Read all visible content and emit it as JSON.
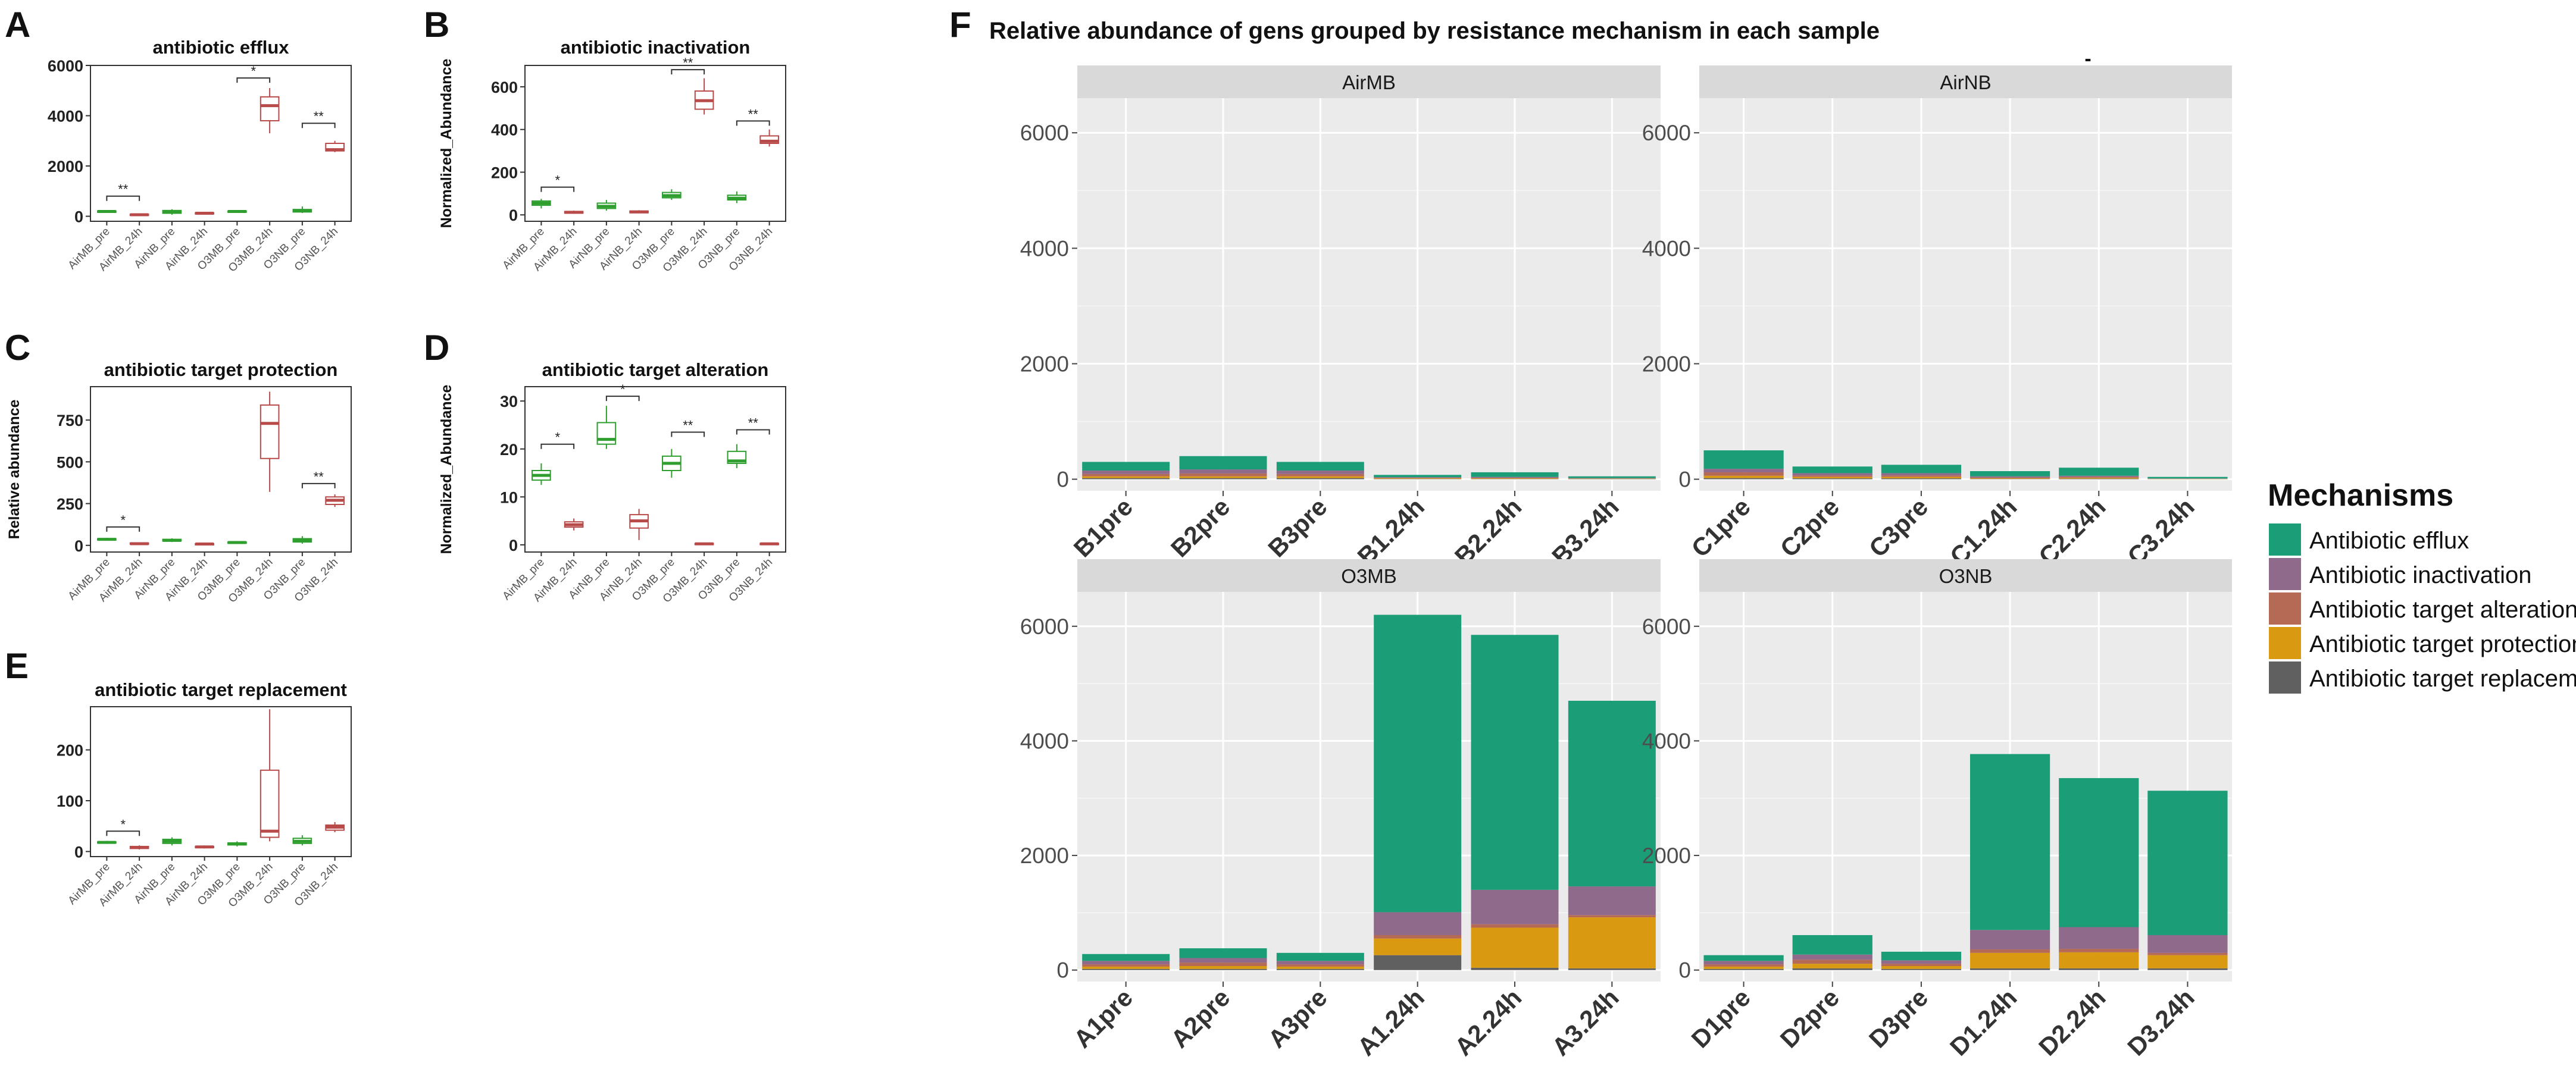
{
  "figure": {
    "title": "Relative abundance  of gens grouped by resistance mechanism in each sample",
    "title_dash": "-",
    "legend": {
      "title": "Mechanisms",
      "items": [
        {
          "label": "Antibiotic efflux",
          "color": "#1b9e77"
        },
        {
          "label": "Antibiotic inactivation",
          "color": "#8f6a8b"
        },
        {
          "label": "Antibiotic target alteration",
          "color": "#b56a55"
        },
        {
          "label": "Antibiotic target protection",
          "color": "#d99a12"
        },
        {
          "label": "Antibiotic target replacement",
          "color": "#606060"
        }
      ]
    }
  },
  "chart_data": [
    {
      "type": "box",
      "panel": "A",
      "title": "antibiotic efflux",
      "ylabel": "",
      "categories": [
        "AirMB_pre",
        "AirMB_24h",
        "AirNB_pre",
        "AirNB_24h",
        "O3MB_pre",
        "O3MB_24h",
        "O3NB_pre",
        "O3NB_24h"
      ],
      "yticks": [
        0,
        2000,
        4000,
        6000
      ],
      "ylim": [
        -200,
        6000
      ],
      "boxes": [
        {
          "min": 140,
          "q1": 160,
          "median": 190,
          "q3": 210,
          "max": 240
        },
        {
          "min": 20,
          "q1": 40,
          "median": 60,
          "q3": 80,
          "max": 110
        },
        {
          "min": 60,
          "q1": 120,
          "median": 180,
          "q3": 230,
          "max": 280
        },
        {
          "min": 80,
          "q1": 100,
          "median": 120,
          "q3": 140,
          "max": 170
        },
        {
          "min": 140,
          "q1": 170,
          "median": 190,
          "q3": 210,
          "max": 240
        },
        {
          "min": 3300,
          "q1": 3800,
          "median": 4400,
          "q3": 4750,
          "max": 5100
        },
        {
          "min": 130,
          "q1": 170,
          "median": 220,
          "q3": 270,
          "max": 390
        },
        {
          "min": 2550,
          "q1": 2600,
          "median": 2650,
          "q3": 2900,
          "max": 3000
        }
      ],
      "significance": [
        {
          "from": 0,
          "to": 1,
          "y": 800,
          "label": "**"
        },
        {
          "from": 4,
          "to": 5,
          "y": 5500,
          "label": "*"
        },
        {
          "from": 6,
          "to": 7,
          "y": 3700,
          "label": "**"
        }
      ]
    },
    {
      "type": "box",
      "panel": "B",
      "title": "antibiotic inactivation",
      "ylabel": "Normalized_Abundance",
      "categories": [
        "AirMB_pre",
        "AirMB_24h",
        "AirNB_pre",
        "AirNB_24h",
        "O3MB_pre",
        "O3MB_24h",
        "O3NB_pre",
        "O3NB_24h"
      ],
      "yticks": [
        0,
        200,
        400,
        600
      ],
      "ylim": [
        -30,
        700
      ],
      "boxes": [
        {
          "min": 30,
          "q1": 45,
          "median": 55,
          "q3": 65,
          "max": 75
        },
        {
          "min": 5,
          "q1": 8,
          "median": 12,
          "q3": 16,
          "max": 20
        },
        {
          "min": 20,
          "q1": 30,
          "median": 40,
          "q3": 55,
          "max": 70
        },
        {
          "min": 8,
          "q1": 10,
          "median": 14,
          "q3": 18,
          "max": 22
        },
        {
          "min": 70,
          "q1": 80,
          "median": 90,
          "q3": 105,
          "max": 120
        },
        {
          "min": 470,
          "q1": 495,
          "median": 535,
          "q3": 580,
          "max": 640
        },
        {
          "min": 55,
          "q1": 70,
          "median": 78,
          "q3": 92,
          "max": 110
        },
        {
          "min": 320,
          "q1": 335,
          "median": 345,
          "q3": 370,
          "max": 400
        }
      ],
      "significance": [
        {
          "from": 0,
          "to": 1,
          "y": 130,
          "label": "*"
        },
        {
          "from": 4,
          "to": 5,
          "y": 680,
          "label": "**"
        },
        {
          "from": 6,
          "to": 7,
          "y": 440,
          "label": "**"
        }
      ]
    },
    {
      "type": "box",
      "panel": "C",
      "title": "antibiotic target protection",
      "ylabel": "Relative abundance",
      "categories": [
        "AirMB_pre",
        "AirMB_24h",
        "AirNB_pre",
        "AirNB_24h",
        "O3MB_pre",
        "O3MB_24h",
        "O3NB_pre",
        "O3NB_24h"
      ],
      "yticks": [
        0,
        250,
        500,
        750
      ],
      "ylim": [
        -40,
        950
      ],
      "boxes": [
        {
          "min": 28,
          "q1": 32,
          "median": 36,
          "q3": 40,
          "max": 45
        },
        {
          "min": 5,
          "q1": 8,
          "median": 10,
          "q3": 14,
          "max": 18
        },
        {
          "min": 20,
          "q1": 26,
          "median": 30,
          "q3": 36,
          "max": 42
        },
        {
          "min": 4,
          "q1": 6,
          "median": 8,
          "q3": 10,
          "max": 14
        },
        {
          "min": 10,
          "q1": 14,
          "median": 17,
          "q3": 20,
          "max": 24
        },
        {
          "min": 320,
          "q1": 520,
          "median": 730,
          "q3": 840,
          "max": 920
        },
        {
          "min": 10,
          "q1": 20,
          "median": 30,
          "q3": 40,
          "max": 55
        },
        {
          "min": 230,
          "q1": 245,
          "median": 270,
          "q3": 290,
          "max": 305
        }
      ],
      "significance": [
        {
          "from": 0,
          "to": 1,
          "y": 110,
          "label": "*"
        },
        {
          "from": 6,
          "to": 7,
          "y": 370,
          "label": "**"
        }
      ]
    },
    {
      "type": "box",
      "panel": "D",
      "title": "antibiotic target alteration",
      "ylabel": "Normalized_Abundance",
      "categories": [
        "AirMB_pre",
        "AirMB_24h",
        "AirNB_pre",
        "AirNB_24h",
        "O3MB_pre",
        "O3MB_24h",
        "O3NB_pre",
        "O3NB_24h"
      ],
      "yticks": [
        0,
        10,
        20,
        30
      ],
      "ylim": [
        -1.5,
        33
      ],
      "boxes": [
        {
          "min": 12.5,
          "q1": 13.5,
          "median": 14.5,
          "q3": 15.5,
          "max": 17
        },
        {
          "min": 3,
          "q1": 3.7,
          "median": 4.2,
          "q3": 4.8,
          "max": 5.5
        },
        {
          "min": 20,
          "q1": 21,
          "median": 22,
          "q3": 25.5,
          "max": 29
        },
        {
          "min": 1,
          "q1": 3.5,
          "median": 5,
          "q3": 6.3,
          "max": 7.5
        },
        {
          "min": 14,
          "q1": 15.5,
          "median": 17,
          "q3": 18.5,
          "max": 20
        },
        {
          "min": 0,
          "q1": 0.1,
          "median": 0.2,
          "q3": 0.3,
          "max": 0.4
        },
        {
          "min": 16,
          "q1": 17,
          "median": 17.5,
          "q3": 19.5,
          "max": 21
        },
        {
          "min": 0,
          "q1": 0.1,
          "median": 0.2,
          "q3": 0.3,
          "max": 0.4
        }
      ],
      "significance": [
        {
          "from": 0,
          "to": 1,
          "y": 21,
          "label": "*"
        },
        {
          "from": 2,
          "to": 3,
          "y": 31,
          "label": "*"
        },
        {
          "from": 4,
          "to": 5,
          "y": 23.5,
          "label": "**"
        },
        {
          "from": 6,
          "to": 7,
          "y": 24,
          "label": "**"
        }
      ]
    },
    {
      "type": "box",
      "panel": "E",
      "title": "antibiotic target replacement",
      "ylabel": "",
      "categories": [
        "AirMB_pre",
        "AirMB_24h",
        "AirNB_pre",
        "AirNB_24h",
        "O3MB_pre",
        "O3MB_24h",
        "O3NB_pre",
        "O3NB_24h"
      ],
      "yticks": [
        0,
        100,
        200
      ],
      "ylim": [
        -10,
        285
      ],
      "boxes": [
        {
          "min": 15,
          "q1": 17,
          "median": 18,
          "q3": 19,
          "max": 21
        },
        {
          "min": 4,
          "q1": 6,
          "median": 8,
          "q3": 10,
          "max": 12
        },
        {
          "min": 12,
          "q1": 16,
          "median": 20,
          "q3": 24,
          "max": 28
        },
        {
          "min": 6,
          "q1": 8,
          "median": 9,
          "q3": 10,
          "max": 12
        },
        {
          "min": 10,
          "q1": 13,
          "median": 15,
          "q3": 17,
          "max": 20
        },
        {
          "min": 20,
          "q1": 28,
          "median": 40,
          "q3": 160,
          "max": 280
        },
        {
          "min": 12,
          "q1": 16,
          "median": 20,
          "q3": 26,
          "max": 32
        },
        {
          "min": 38,
          "q1": 42,
          "median": 48,
          "q3": 52,
          "max": 58
        }
      ],
      "significance": [
        {
          "from": 0,
          "to": 1,
          "y": 40,
          "label": "*"
        }
      ]
    },
    {
      "type": "stacked-bar",
      "panel": "F",
      "facet": "AirMB",
      "categories": [
        "B1pre",
        "B2pre",
        "B3pre",
        "B1.24h",
        "B2.24h",
        "B3.24h"
      ],
      "yticks": [
        0,
        2000,
        4000,
        6000
      ],
      "ylim": [
        -200,
        6600
      ],
      "series": [
        {
          "name": "Antibiotic target replacement",
          "values": [
            20,
            20,
            20,
            5,
            5,
            5
          ]
        },
        {
          "name": "Antibiotic target protection",
          "values": [
            30,
            30,
            30,
            10,
            10,
            5
          ]
        },
        {
          "name": "Antibiotic target alteration",
          "values": [
            40,
            50,
            40,
            10,
            10,
            5
          ]
        },
        {
          "name": "Antibiotic inactivation",
          "values": [
            60,
            70,
            60,
            10,
            15,
            5
          ]
        },
        {
          "name": "Antibiotic efflux",
          "values": [
            150,
            230,
            150,
            40,
            80,
            30
          ]
        }
      ]
    },
    {
      "type": "stacked-bar",
      "panel": "F",
      "facet": "AirNB",
      "categories": [
        "C1pre",
        "C2pre",
        "C3pre",
        "C1.24h",
        "C2.24h",
        "C3.24h"
      ],
      "yticks": [
        0,
        2000,
        4000,
        6000
      ],
      "ylim": [
        -200,
        6600
      ],
      "series": [
        {
          "name": "Antibiotic target replacement",
          "values": [
            20,
            15,
            15,
            5,
            10,
            2
          ]
        },
        {
          "name": "Antibiotic target protection",
          "values": [
            40,
            25,
            25,
            10,
            15,
            3
          ]
        },
        {
          "name": "Antibiotic target alteration",
          "values": [
            60,
            25,
            25,
            15,
            15,
            3
          ]
        },
        {
          "name": "Antibiotic inactivation",
          "values": [
            60,
            40,
            40,
            20,
            20,
            5
          ]
        },
        {
          "name": "Antibiotic efflux",
          "values": [
            320,
            115,
            145,
            90,
            140,
            27
          ]
        }
      ]
    },
    {
      "type": "stacked-bar",
      "panel": "F",
      "facet": "O3MB",
      "categories": [
        "A1pre",
        "A2pre",
        "A3pre",
        "A1.24h",
        "A2.24h",
        "A3.24h"
      ],
      "yticks": [
        0,
        2000,
        4000,
        6000
      ],
      "ylim": [
        -200,
        6600
      ],
      "series": [
        {
          "name": "Antibiotic target replacement",
          "values": [
            20,
            20,
            20,
            260,
            40,
            30
          ]
        },
        {
          "name": "Antibiotic target protection",
          "values": [
            40,
            50,
            40,
            290,
            700,
            890
          ]
        },
        {
          "name": "Antibiotic target alteration",
          "values": [
            40,
            60,
            40,
            60,
            60,
            40
          ]
        },
        {
          "name": "Antibiotic inactivation",
          "values": [
            60,
            80,
            60,
            400,
            600,
            500
          ]
        },
        {
          "name": "Antibiotic efflux",
          "values": [
            120,
            170,
            140,
            5190,
            4450,
            3240
          ]
        }
      ]
    },
    {
      "type": "stacked-bar",
      "panel": "F",
      "facet": "O3NB",
      "categories": [
        "D1pre",
        "D2pre",
        "D3pre",
        "D1.24h",
        "D2.24h",
        "D3.24h"
      ],
      "yticks": [
        0,
        2000,
        4000,
        6000
      ],
      "ylim": [
        -200,
        6600
      ],
      "series": [
        {
          "name": "Antibiotic target replacement",
          "values": [
            20,
            30,
            20,
            30,
            30,
            30
          ]
        },
        {
          "name": "Antibiotic target protection",
          "values": [
            40,
            80,
            50,
            270,
            280,
            230
          ]
        },
        {
          "name": "Antibiotic target alteration",
          "values": [
            40,
            70,
            40,
            60,
            60,
            40
          ]
        },
        {
          "name": "Antibiotic inactivation",
          "values": [
            60,
            90,
            60,
            340,
            380,
            310
          ]
        },
        {
          "name": "Antibiotic efflux",
          "values": [
            100,
            340,
            150,
            3070,
            2600,
            2520
          ]
        }
      ]
    }
  ]
}
